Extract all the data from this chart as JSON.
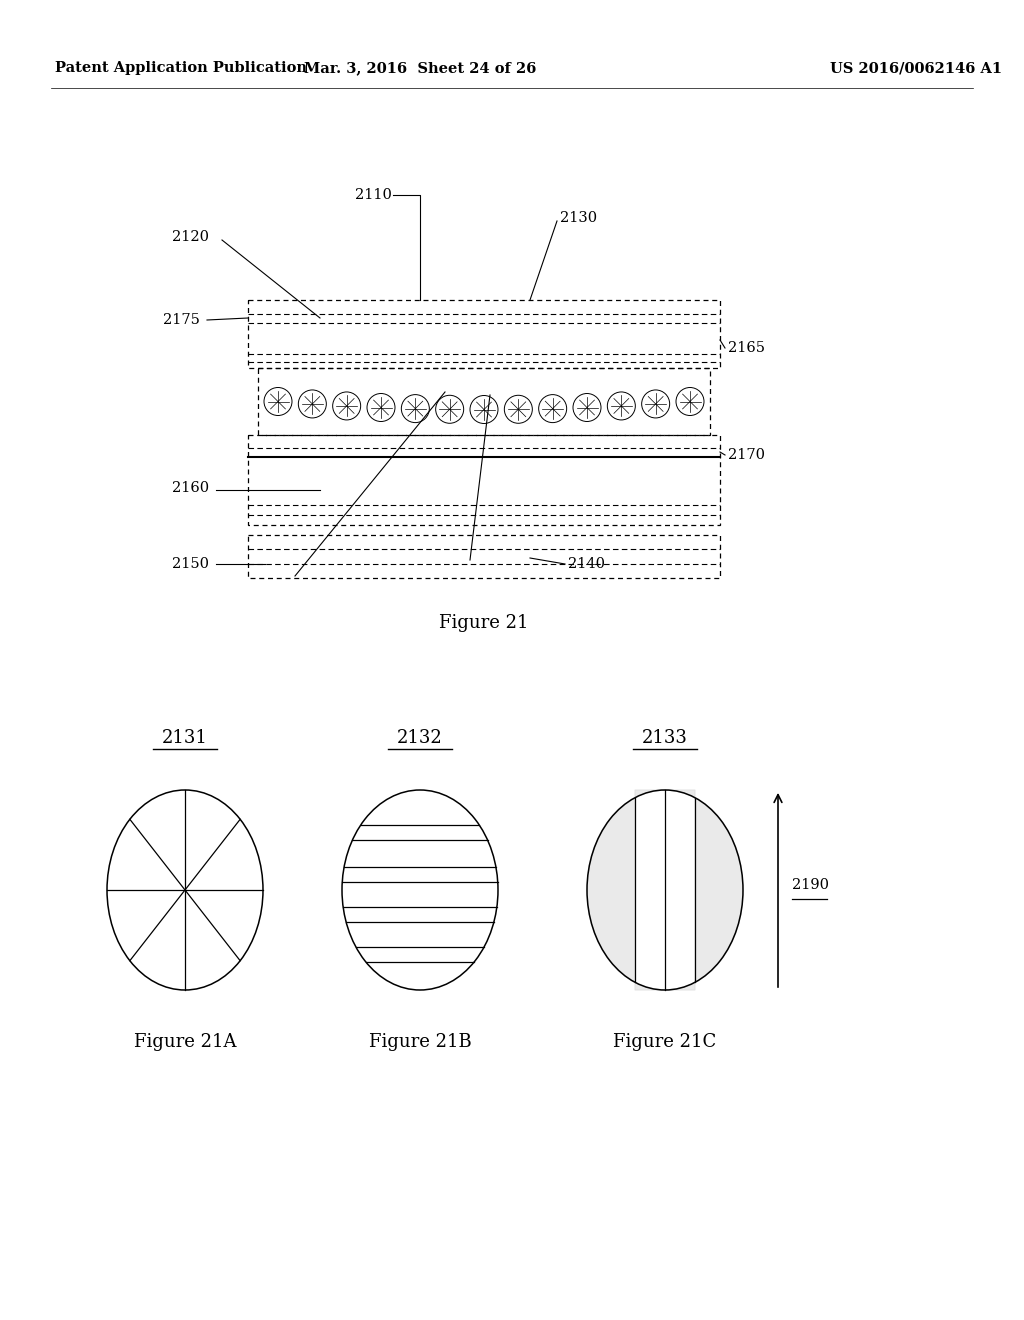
{
  "header_left": "Patent Application Publication",
  "header_mid": "Mar. 3, 2016  Sheet 24 of 26",
  "header_right": "US 2016/0062146 A1",
  "figure_title": "Figure 21",
  "fig21A_label": "2131",
  "fig21B_label": "2132",
  "fig21C_label": "2133",
  "fig21A_caption": "Figure 21A",
  "fig21B_caption": "Figure 21B",
  "fig21C_caption": "Figure 21C",
  "arrow_label": "2190",
  "bg_color": "#ffffff",
  "line_color": "#000000"
}
